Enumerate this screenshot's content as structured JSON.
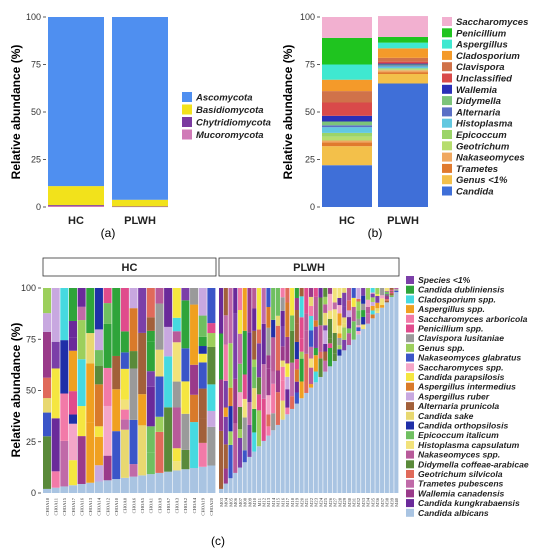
{
  "chart_data": [
    {
      "panel_label": "(a)",
      "type": "bar",
      "stacked": true,
      "categories": [
        "HC",
        "PLWH"
      ],
      "ylabel": "Relative abundance (%)",
      "ylim": [
        0,
        100
      ],
      "yticks": [
        0,
        25,
        50,
        75,
        100
      ],
      "legend_position": "right",
      "series": [
        {
          "name": "Mucoromycota",
          "color": "#d07ab7",
          "values": [
            0.5,
            0.2
          ]
        },
        {
          "name": "Chytridiomycota",
          "color": "#7b3aa0",
          "values": [
            0.5,
            0.1
          ]
        },
        {
          "name": "Basidiomycota",
          "color": "#f2e21b",
          "values": [
            10,
            3.5
          ]
        },
        {
          "name": "Ascomycota",
          "color": "#4f8ff0",
          "values": [
            89,
            96.2
          ]
        }
      ],
      "legend_order": [
        "Ascomycota",
        "Basidiomycota",
        "Chytridiomycota",
        "Mucoromycota"
      ]
    },
    {
      "panel_label": "(b)",
      "type": "bar",
      "stacked": true,
      "categories": [
        "HC",
        "PLWH"
      ],
      "ylabel": "Relative abundance (%)",
      "ylim": [
        0,
        100
      ],
      "yticks": [
        0,
        25,
        50,
        75,
        100
      ],
      "legend_position": "right",
      "series": [
        {
          "name": "Candida",
          "color": "#3f6fd8",
          "values": [
            22,
            65
          ]
        },
        {
          "name": "Genus <1%",
          "color": "#f3c04a",
          "values": [
            10,
            5
          ]
        },
        {
          "name": "Trametes",
          "color": "#e07a2e",
          "values": [
            2,
            1
          ]
        },
        {
          "name": "Nakaseomyces",
          "color": "#f0a860",
          "values": [
            1,
            1
          ]
        },
        {
          "name": "Geotrichum",
          "color": "#b6dd6e",
          "values": [
            2,
            0.5
          ]
        },
        {
          "name": "Epicoccum",
          "color": "#9bd468",
          "values": [
            2,
            0.5
          ]
        },
        {
          "name": "Histoplasma",
          "color": "#62c8e0",
          "values": [
            3,
            1
          ]
        },
        {
          "name": "Alternaria",
          "color": "#5a6fc6",
          "values": [
            1,
            0.5
          ]
        },
        {
          "name": "Didymella",
          "color": "#7cc47a",
          "values": [
            2,
            0.5
          ]
        },
        {
          "name": "Wallemia",
          "color": "#2a2fb8",
          "values": [
            3,
            0.5
          ]
        },
        {
          "name": "Unclassified",
          "color": "#d94a4a",
          "values": [
            7,
            1
          ]
        },
        {
          "name": "Clavispora",
          "color": "#d0724a",
          "values": [
            6,
            2
          ]
        },
        {
          "name": "Cladosporium",
          "color": "#f49a2a",
          "values": [
            6,
            5
          ]
        },
        {
          "name": "Aspergillus",
          "color": "#3fe8d0",
          "values": [
            8,
            3
          ]
        },
        {
          "name": "Penicillium",
          "color": "#1fc41f",
          "values": [
            14,
            3
          ]
        },
        {
          "name": "Saccharomyces",
          "color": "#f2b0d0",
          "values": [
            11,
            11
          ]
        }
      ],
      "legend_order": [
        "Saccharomyces",
        "Penicillium",
        "Aspergillus",
        "Cladosporium",
        "Clavispora",
        "Unclassified",
        "Wallemia",
        "Didymella",
        "Alternaria",
        "Histoplasma",
        "Epicoccum",
        "Geotrichum",
        "Nakaseomyces",
        "Trametes",
        "Genus <1%",
        "Candida"
      ]
    },
    {
      "panel_label": "(c)",
      "type": "bar",
      "stacked": true,
      "facets": [
        "HC",
        "PLWH"
      ],
      "ylabel": "Relative abundance (%)",
      "ylim": [
        0,
        100
      ],
      "yticks": [
        0,
        25,
        50,
        75,
        100
      ],
      "legend_position": "right",
      "hc_samples": [
        "CHOA18",
        "CHOA11",
        "CHOA15",
        "CHOA17",
        "CHOA16",
        "CHOA13",
        "CHOA14",
        "CHOA12",
        "CHOA10",
        "CHOA8",
        "CHOA6",
        "CHOA5",
        "CHOA1",
        "CHOA9",
        "CHOA7",
        "CHOA3",
        "CHOA2",
        "CHOA4",
        "CHOA19",
        "CHOA20"
      ],
      "plwh_samples": [
        "M03",
        "M04",
        "M05",
        "M06",
        "M07",
        "M08",
        "M09",
        "M10",
        "M11",
        "M12",
        "M13",
        "M14",
        "M15",
        "M16",
        "M17",
        "M18",
        "M19",
        "M20",
        "M21",
        "M22",
        "M23",
        "M24",
        "M25",
        "M26",
        "M27",
        "M28",
        "M29",
        "M30",
        "M31",
        "M32",
        "M33",
        "M34",
        "M35",
        "M36",
        "M37",
        "M38",
        "M39",
        "M40"
      ],
      "species_legend": [
        {
          "name": "Species <1%",
          "color": "#7b3fa8"
        },
        {
          "name": "Candida dubliniensis",
          "color": "#2fa43a"
        },
        {
          "name": "Cladosporium spp.",
          "color": "#46d9e0"
        },
        {
          "name": "Aspergillus spp.",
          "color": "#f0a020"
        },
        {
          "name": "Saccharomyces arboricola",
          "color": "#f27aa8"
        },
        {
          "name": "Penicillium spp.",
          "color": "#e04b8c"
        },
        {
          "name": "Clavispora lusitaniae",
          "color": "#9a9a9a"
        },
        {
          "name": "Genus spp.",
          "color": "#9ccf5c"
        },
        {
          "name": "Nakaseomyces glabratus",
          "color": "#3b55c8"
        },
        {
          "name": "Saccharomyces spp.",
          "color": "#f4a6c8"
        },
        {
          "name": "Candida parapsilosis",
          "color": "#f5e640"
        },
        {
          "name": "Aspergillus intermedius",
          "color": "#d97a2a"
        },
        {
          "name": "Aspergillus ruber",
          "color": "#c8a8e0"
        },
        {
          "name": "Alternaria prunicola",
          "color": "#a2603a"
        },
        {
          "name": "Candida sake",
          "color": "#e8d870"
        },
        {
          "name": "Candida orthopsilosis",
          "color": "#1f2fa8"
        },
        {
          "name": "Epicoccum italicum",
          "color": "#6fbf60"
        },
        {
          "name": "Histoplasma capsulatum",
          "color": "#f2e27a"
        },
        {
          "name": "Nakaseomyces spp.",
          "color": "#b85a9a"
        },
        {
          "name": "Didymella coffeae-arabicae",
          "color": "#5a8a3a"
        },
        {
          "name": "Geotrichum silvicola",
          "color": "#e06a5a"
        },
        {
          "name": "Trametes pubescens",
          "color": "#c06aa8"
        },
        {
          "name": "Wallemia canadensis",
          "color": "#9a3a8a"
        },
        {
          "name": "Candida kungkrabaensis",
          "color": "#6a2a9a"
        },
        {
          "name": "Candida albicans",
          "color": "#a9c4e2"
        }
      ]
    }
  ]
}
